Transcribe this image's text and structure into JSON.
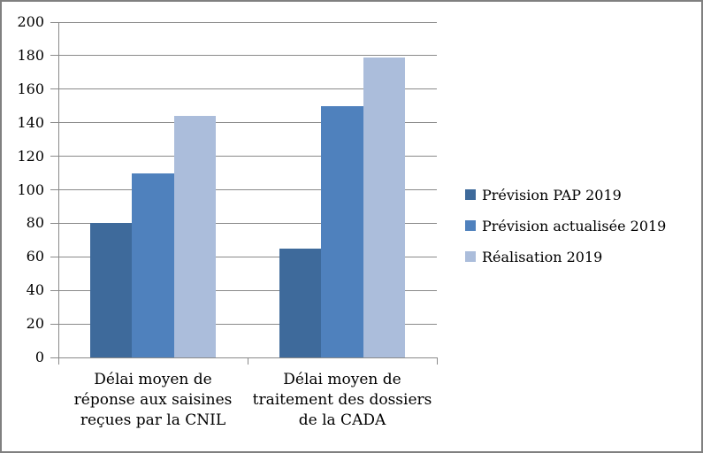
{
  "chart_data": {
    "type": "bar",
    "title": "",
    "xlabel": "",
    "ylabel": "",
    "categories": [
      "Délai moyen de\nréponse aux saisines\nreçues par la CNIL",
      "Délai moyen de\ntraitement des dossiers\nde la CADA"
    ],
    "series": [
      {
        "name": "Prévision PAP 2019",
        "color": "#3E6A9B",
        "values": [
          80,
          65
        ]
      },
      {
        "name": "Prévision actualisée 2019",
        "color": "#4F81BD",
        "values": [
          110,
          150
        ]
      },
      {
        "name": "Réalisation 2019",
        "color": "#ABBDDB",
        "values": [
          144,
          179
        ]
      }
    ],
    "ylim": [
      0,
      200
    ],
    "ytick_step": 20,
    "grid": true,
    "legend_position": "right",
    "colors": {
      "gridline": "#8A8A8A",
      "axis": "#8A8A8A",
      "frame_border": "#808080",
      "text": "#000000",
      "background": "#FFFFFF"
    }
  }
}
